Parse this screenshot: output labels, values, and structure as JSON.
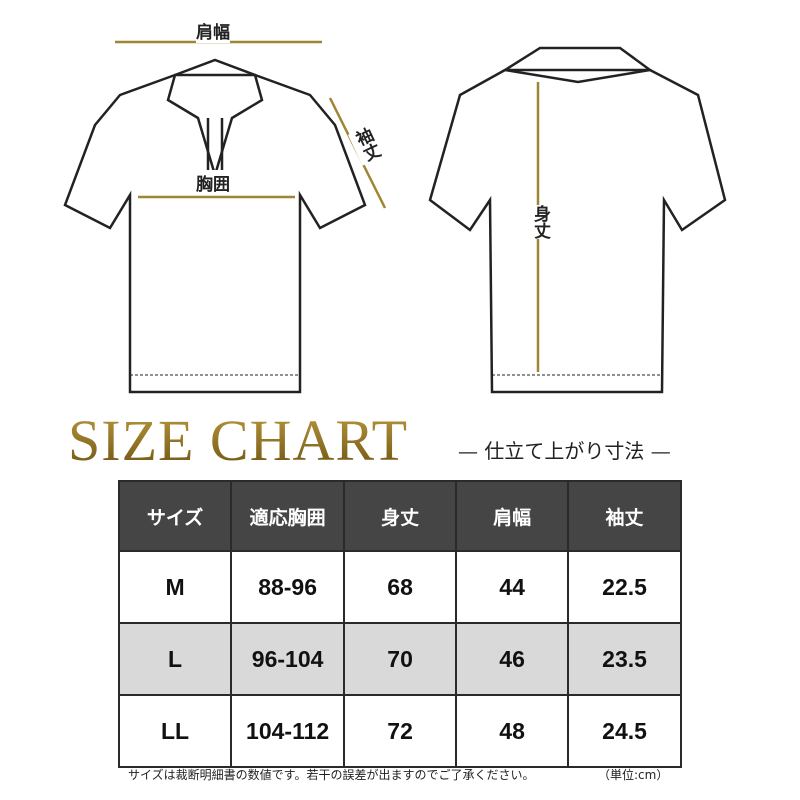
{
  "labels": {
    "shoulder": "肩幅",
    "chest": "胸囲",
    "sleeve": "袖丈",
    "length": "身丈"
  },
  "title": "SIZE CHART",
  "subtitle": "— 仕立て上がり寸法 —",
  "colors": {
    "gold": "#8a6d1f",
    "header_bg": "#454545",
    "shaded_row": "#d9d9d9"
  },
  "table": {
    "headers": [
      "サイズ",
      "適応胸囲",
      "身丈",
      "肩幅",
      "袖丈"
    ],
    "rows": [
      [
        "M",
        "88-96",
        "68",
        "44",
        "22.5"
      ],
      [
        "L",
        "96-104",
        "70",
        "46",
        "23.5"
      ],
      [
        "LL",
        "104-112",
        "72",
        "48",
        "24.5"
      ]
    ]
  },
  "note": "サイズは裁断明細書の数値です。若干の誤差が出ますのでご了承ください。",
  "unit": "（単位:cm）"
}
